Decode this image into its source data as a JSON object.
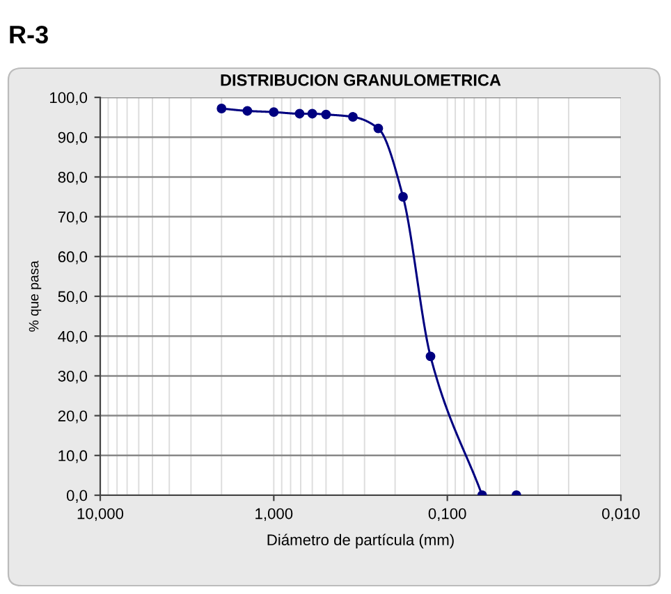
{
  "chart_data": {
    "type": "line",
    "title": "DISTRIBUCION GRANULOMETRICA",
    "xlabel": "Diámetro de partícula (mm)",
    "ylabel": "% que pasa",
    "annotations": [
      "R-3"
    ],
    "series": [
      {
        "color": "#000080",
        "x": [
          2.0,
          1.42,
          1.0,
          0.71,
          0.6,
          0.5,
          0.35,
          0.25,
          0.18,
          0.125,
          0.063
        ],
        "values": [
          97.2,
          96.6,
          96.3,
          95.9,
          95.9,
          95.7,
          95.1,
          92.2,
          75.0,
          34.9,
          0.0
        ]
      },
      {
        "type": "scatter",
        "color": "#000080",
        "x": [
          0.04
        ],
        "values": [
          0.0
        ]
      }
    ],
    "log": "x",
    "marker": "circle",
    "line_style": "solid",
    "grid": true,
    "xlim": [
      10,
      0.01
    ],
    "xticks": [
      {
        "value": 10,
        "label": "10,000"
      },
      {
        "value": 1,
        "label": "1,000"
      },
      {
        "value": 0.1,
        "label": "0,100"
      },
      {
        "value": 0.01,
        "label": "0,010"
      }
    ],
    "ylim": [
      0,
      100
    ],
    "yticks": [
      {
        "value": 0,
        "label": "0,0"
      },
      {
        "value": 10,
        "label": "10,0"
      },
      {
        "value": 20,
        "label": "20,0"
      },
      {
        "value": 30,
        "label": "30,0"
      },
      {
        "value": 40,
        "label": "40,0"
      },
      {
        "value": 50,
        "label": "50,0"
      },
      {
        "value": 60,
        "label": "60,0"
      },
      {
        "value": 70,
        "label": "70,0"
      },
      {
        "value": 80,
        "label": "80,0"
      },
      {
        "value": 90,
        "label": "90,0"
      },
      {
        "value": 100,
        "label": "100,0"
      }
    ]
  }
}
